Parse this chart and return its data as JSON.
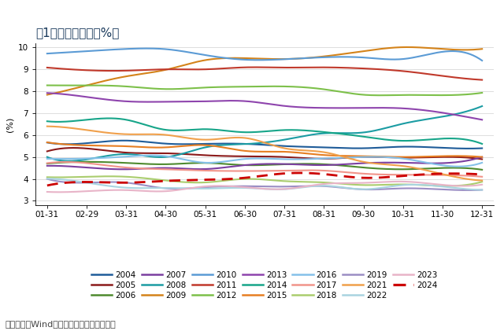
{
  "title": "图1：美国失业率（%）",
  "ylabel": "(%)",
  "source": "数据来源：Wind，广发证券发展研究中心。",
  "x_labels": [
    "01-31",
    "02-29",
    "03-31",
    "04-30",
    "05-31",
    "06-30",
    "07-31",
    "08-31",
    "09-30",
    "10-31",
    "11-30",
    "12-31"
  ],
  "ylim": [
    2.8,
    10.2
  ],
  "yticks": [
    3,
    4,
    5,
    6,
    7,
    8,
    9,
    10
  ],
  "series_order": [
    "2004",
    "2005",
    "2006",
    "2007",
    "2008",
    "2009",
    "2010",
    "2011",
    "2012",
    "2013",
    "2014",
    "2015",
    "2016",
    "2017",
    "2018",
    "2019",
    "2021",
    "2022",
    "2023",
    "2024"
  ],
  "series": {
    "2004": {
      "color": "#1F5C99",
      "lw": 1.5,
      "ls": "-",
      "values": [
        5.66,
        5.63,
        5.75,
        5.61,
        5.6,
        5.6,
        5.5,
        5.44,
        5.4,
        5.47,
        5.42,
        5.4
      ]
    },
    "2005": {
      "color": "#8B1A1A",
      "lw": 1.5,
      "ls": "-",
      "values": [
        5.26,
        5.39,
        5.2,
        5.17,
        5.08,
        5.03,
        5.0,
        4.92,
        5.0,
        4.97,
        5.0,
        4.9
      ]
    },
    "2006": {
      "color": "#4E8A2E",
      "lw": 1.5,
      "ls": "-",
      "values": [
        4.7,
        4.78,
        4.73,
        4.67,
        4.73,
        4.63,
        4.67,
        4.67,
        4.52,
        4.44,
        4.5,
        4.42
      ]
    },
    "2007": {
      "color": "#7B3FA0",
      "lw": 1.5,
      "ls": "-",
      "values": [
        4.6,
        4.52,
        4.44,
        4.5,
        4.45,
        4.63,
        4.68,
        4.63,
        4.72,
        4.74,
        4.72,
        5.0
      ]
    },
    "2008": {
      "color": "#1B9CA3",
      "lw": 1.5,
      "ls": "-",
      "values": [
        5.0,
        4.89,
        5.13,
        5.0,
        5.44,
        5.59,
        5.79,
        6.08,
        6.12,
        6.52,
        6.84,
        7.32
      ]
    },
    "2009": {
      "color": "#D4831A",
      "lw": 1.5,
      "ls": "-",
      "values": [
        7.84,
        8.27,
        8.68,
        8.98,
        9.42,
        9.51,
        9.47,
        9.59,
        9.83,
        10.01,
        9.93,
        9.93
      ]
    },
    "2010": {
      "color": "#5B9BD5",
      "lw": 1.5,
      "ls": "-",
      "values": [
        9.72,
        9.83,
        9.93,
        9.92,
        9.65,
        9.44,
        9.46,
        9.55,
        9.54,
        9.47,
        9.8,
        9.4
      ]
    },
    "2011": {
      "color": "#C0392B",
      "lw": 1.5,
      "ls": "-",
      "values": [
        9.08,
        8.96,
        8.94,
        9.0,
        9.0,
        9.09,
        9.08,
        9.09,
        9.04,
        8.92,
        8.7,
        8.52
      ]
    },
    "2012": {
      "color": "#7DC04A",
      "lw": 1.5,
      "ls": "-",
      "values": [
        8.27,
        8.27,
        8.22,
        8.1,
        8.17,
        8.21,
        8.22,
        8.09,
        7.84,
        7.83,
        7.82,
        7.93
      ]
    },
    "2013": {
      "color": "#8E44AD",
      "lw": 1.5,
      "ls": "-",
      "values": [
        7.92,
        7.74,
        7.54,
        7.52,
        7.54,
        7.55,
        7.33,
        7.24,
        7.24,
        7.22,
        7.02,
        6.7
      ]
    },
    "2014": {
      "color": "#17A589",
      "lw": 1.5,
      "ls": "-",
      "values": [
        6.63,
        6.7,
        6.7,
        6.24,
        6.27,
        6.13,
        6.23,
        6.14,
        5.93,
        5.74,
        5.84,
        5.6
      ]
    },
    "2015": {
      "color": "#E67E22",
      "lw": 1.5,
      "ls": "-",
      "values": [
        5.67,
        5.53,
        5.49,
        5.44,
        5.54,
        5.28,
        5.24,
        5.09,
        5.04,
        5.0,
        5.04,
        5.0
      ]
    },
    "2016": {
      "color": "#85C1E9",
      "lw": 1.5,
      "ls": "-",
      "values": [
        4.92,
        4.93,
        5.02,
        5.04,
        4.74,
        4.91,
        4.9,
        4.93,
        5.0,
        4.93,
        4.62,
        4.74
      ]
    },
    "2017": {
      "color": "#F1948A",
      "lw": 1.5,
      "ls": "-",
      "values": [
        4.72,
        4.72,
        4.52,
        4.44,
        4.38,
        4.36,
        4.38,
        4.38,
        4.24,
        4.19,
        4.18,
        4.1
      ]
    },
    "2018": {
      "color": "#AACD6E",
      "lw": 1.5,
      "ls": "-",
      "values": [
        4.08,
        4.1,
        4.1,
        3.93,
        3.84,
        4.0,
        3.9,
        3.84,
        3.72,
        3.75,
        3.68,
        3.87
      ]
    },
    "2019": {
      "color": "#9B8EC4",
      "lw": 1.5,
      "ls": "-",
      "values": [
        4.0,
        3.83,
        3.83,
        3.57,
        3.62,
        3.67,
        3.65,
        3.67,
        3.52,
        3.57,
        3.52,
        3.5
      ]
    },
    "2021": {
      "color": "#F0A04B",
      "lw": 1.5,
      "ls": "-",
      "values": [
        6.4,
        6.23,
        6.04,
        6.01,
        5.79,
        5.87,
        5.4,
        5.22,
        4.78,
        4.59,
        4.22,
        3.93
      ]
    },
    "2022": {
      "color": "#A9D4E0",
      "lw": 1.5,
      "ls": "-",
      "values": [
        4.01,
        3.83,
        3.6,
        3.59,
        3.56,
        3.59,
        3.53,
        3.69,
        3.53,
        3.72,
        3.65,
        3.5
      ]
    },
    "2023": {
      "color": "#E8B4C8",
      "lw": 1.5,
      "ls": "-",
      "values": [
        3.41,
        3.44,
        3.49,
        3.44,
        3.66,
        3.62,
        3.54,
        3.77,
        3.82,
        3.88,
        3.73,
        3.74
      ]
    },
    "2024": {
      "color": "#CC0000",
      "lw": 2.0,
      "ls": "--",
      "values": [
        3.7,
        3.86,
        3.83,
        3.91,
        3.96,
        4.05,
        4.25,
        4.22,
        4.05,
        4.14,
        4.24,
        4.2
      ]
    }
  },
  "legend_rows": [
    [
      "2004",
      "2005",
      "2006",
      "2007",
      "2008",
      "2009",
      "2010"
    ],
    [
      "2011",
      "2012",
      "2013",
      "2014",
      "2015",
      "2016",
      "2017"
    ],
    [
      "2018",
      "2019",
      "2021",
      "2022",
      "2023",
      "2024"
    ]
  ],
  "background_color": "#FFFFFF",
  "title_color": "#1A3A5C",
  "title_fontsize": 11,
  "label_fontsize": 8,
  "tick_fontsize": 7.5,
  "legend_fontsize": 7.5,
  "source_fontsize": 8
}
